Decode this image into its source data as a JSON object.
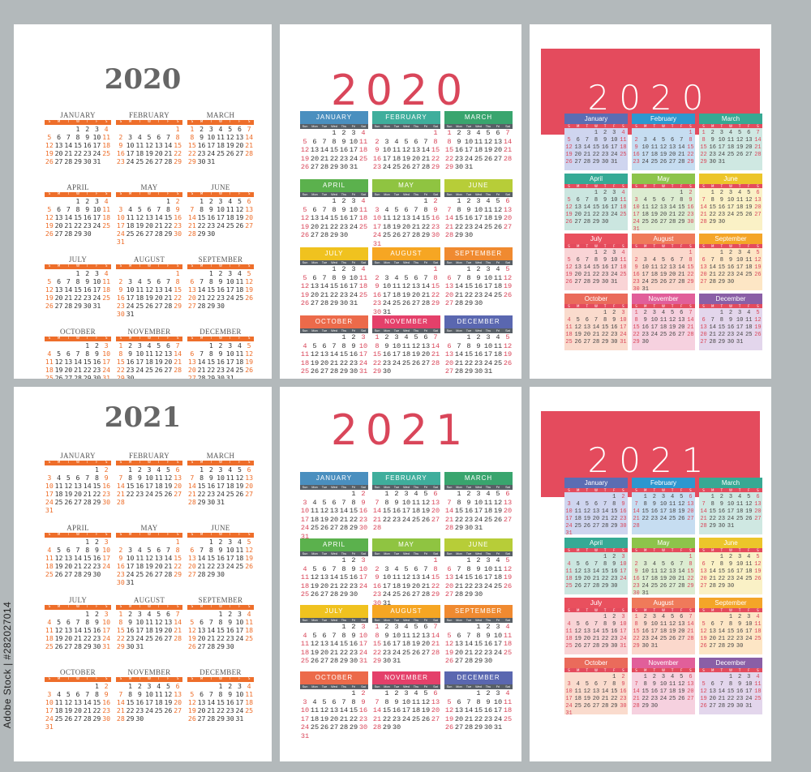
{
  "side_text": "Adobe Stock | #282027014",
  "days_A": [
    "S",
    "M",
    "T",
    "W",
    "T",
    "F",
    "S"
  ],
  "days_B": [
    "Sun",
    "Mon",
    "Tue",
    "Wed",
    "Thu",
    "Fri",
    "Sat"
  ],
  "days_C": [
    "S",
    "M",
    "T",
    "W",
    "T",
    "F",
    "S"
  ],
  "month_names_upper": [
    "JANUARY",
    "FEBRUARY",
    "MARCH",
    "APRIL",
    "MAY",
    "JUNE",
    "JULY",
    "AUGUST",
    "SEPTEMBER",
    "OCTOBER",
    "NOVEMBER",
    "DECEMBER"
  ],
  "month_names_title": [
    "January",
    "February",
    "March",
    "April",
    "May",
    "June",
    "July",
    "August",
    "September",
    "October",
    "November",
    "December"
  ],
  "colors": {
    "style_a_accent": "#ee6e2a",
    "style_b_accent": "#d9465a",
    "style_c_banner": "#e44b5d",
    "style_b_headers": [
      "#4a8fbf",
      "#3fae9c",
      "#39a56e",
      "#5bb14d",
      "#8fc441",
      "#b7cd38",
      "#f0c21f",
      "#f6a623",
      "#f08a30",
      "#ec6a4a",
      "#e4406a",
      "#5a67b0"
    ],
    "style_c_headers": [
      "#5b6db3",
      "#2d97cf",
      "#37a993",
      "#36aa95",
      "#8dc44b",
      "#ecc52a",
      "#e9505e",
      "#ef7a5a",
      "#f4a528",
      "#ea6b5b",
      "#e15f9a",
      "#8a5fa6"
    ],
    "style_c_bodies": [
      "#cfd5ef",
      "#c6ddf1",
      "#cfe8e2",
      "#cbe6e0",
      "#dcecd1",
      "#faf1c6",
      "#f9d4d6",
      "#fbd8cc",
      "#fde6c5",
      "#fadbcd",
      "#f6d1df",
      "#e3d6ec"
    ]
  },
  "panels": [
    {
      "id": "a2020",
      "style": "A",
      "year_label": "2020",
      "year": 2020
    },
    {
      "id": "b2020",
      "style": "B",
      "year_label": "2020",
      "year": 2020
    },
    {
      "id": "c2020",
      "style": "C",
      "year_label": "2020",
      "year": 2020
    },
    {
      "id": "a2021",
      "style": "A",
      "year_label": "2021",
      "year": 2021
    },
    {
      "id": "b2021",
      "style": "B",
      "year_label": "2021",
      "year": 2021
    },
    {
      "id": "c2021",
      "style": "C",
      "year_label": "2021",
      "year": 2021
    }
  ]
}
